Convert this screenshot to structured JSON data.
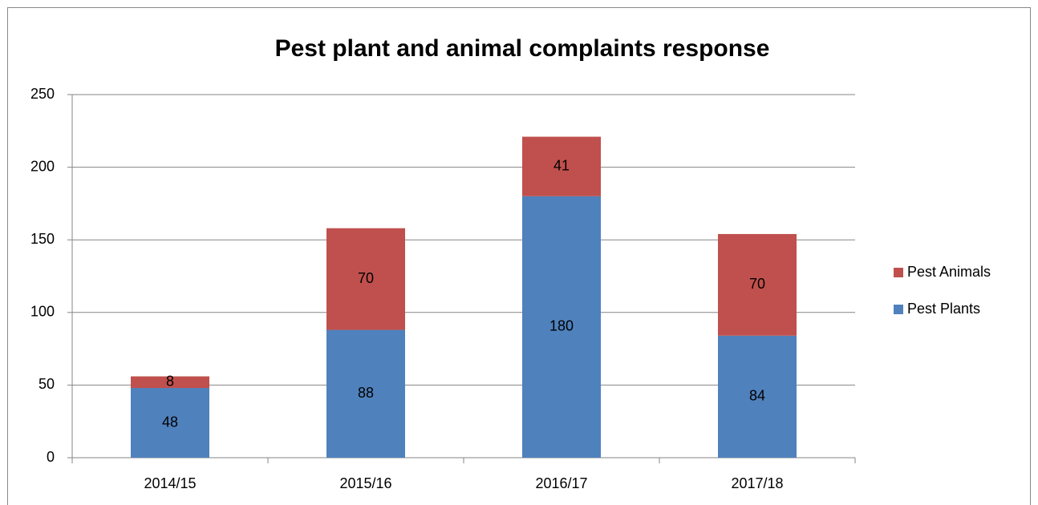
{
  "chart_data": {
    "type": "stacked_bar",
    "title": "Pest plant and animal complaints response",
    "categories": [
      "2014/15",
      "2015/16",
      "2016/17",
      "2017/18"
    ],
    "series": [
      {
        "name": "Pest Plants",
        "color": "#4f81bd",
        "values": [
          48,
          88,
          180,
          84
        ]
      },
      {
        "name": "Pest Animals",
        "color": "#c0504d",
        "values": [
          8,
          70,
          41,
          70
        ]
      }
    ],
    "ylim": [
      0,
      250
    ],
    "yticks": [
      0,
      50,
      100,
      150,
      200,
      250
    ],
    "grid": true,
    "legend": "right"
  }
}
